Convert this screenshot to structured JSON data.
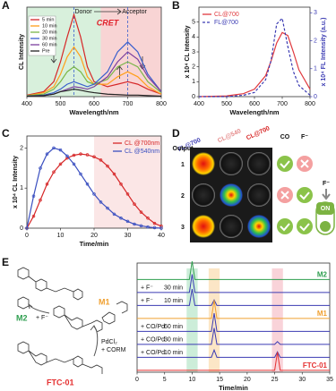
{
  "panel_labels": [
    "A",
    "B",
    "C",
    "D",
    "E"
  ],
  "chart_data": [
    {
      "type": "line",
      "x_label": "Wavelength/nm",
      "y_label": "CL Intensity",
      "xlim": [
        400,
        800
      ],
      "xticks": [
        400,
        500,
        600,
        700,
        800
      ],
      "ylim": [
        0,
        18
      ],
      "annotations": [
        "Donor",
        "Acceptor",
        "CRET"
      ],
      "legend": "upper left",
      "x": [
        400,
        450,
        480,
        500,
        520,
        540,
        560,
        580,
        600,
        640,
        670,
        700,
        730,
        760,
        800
      ],
      "series": [
        {
          "name": "5 min",
          "color": "#d62728",
          "values": [
            0.3,
            1,
            3,
            7,
            12,
            16.5,
            12,
            6,
            3,
            2,
            2.5,
            3,
            2.5,
            1.5,
            0.5
          ]
        },
        {
          "name": "10 min",
          "color": "#ff9f1a",
          "values": [
            0.2,
            0.8,
            2,
            4.5,
            8,
            10,
            8,
            4,
            2.5,
            2.5,
            4,
            5,
            4,
            2,
            0.5
          ]
        },
        {
          "name": "20 min",
          "color": "#7ab648",
          "values": [
            0.2,
            0.5,
            1.5,
            3,
            5,
            6,
            5,
            3,
            2.5,
            3.5,
            6,
            7,
            6,
            3,
            0.8
          ]
        },
        {
          "name": "30 min",
          "color": "#3a5fcd",
          "values": [
            0.1,
            0.3,
            0.8,
            1.5,
            2.5,
            3,
            2.5,
            2,
            2.5,
            5,
            9,
            11,
            9,
            4.5,
            1
          ]
        },
        {
          "name": "60 min",
          "color": "#7b3f9e",
          "values": [
            0.1,
            0.2,
            0.5,
            1,
            1.5,
            2,
            1.8,
            1.5,
            2,
            4,
            7,
            9,
            7.5,
            4,
            1
          ]
        },
        {
          "name": "Pre",
          "color": "#222222",
          "values": [
            0.1,
            0.2,
            0.5,
            1,
            1.2,
            1.5,
            1.3,
            1,
            0.8,
            0.5,
            0.4,
            0.3,
            0.3,
            0.2,
            0.1
          ]
        }
      ]
    },
    {
      "type": "line",
      "x_label": "Wavelength/nm",
      "y_label": "x 10⁴ CL Intensity",
      "y2_label": "x 10⁴ FL Intensity (a.u.)",
      "xlim": [
        400,
        800
      ],
      "xticks": [
        400,
        500,
        600,
        700,
        800
      ],
      "ylim": [
        0,
        6
      ],
      "yticks": [
        0,
        1,
        2,
        3,
        4,
        5
      ],
      "y2lim": [
        0,
        3.2
      ],
      "y2ticks": [
        0,
        1,
        2,
        3
      ],
      "legend": "upper left",
      "x": [
        400,
        500,
        560,
        600,
        640,
        660,
        680,
        700,
        720,
        740,
        760,
        800
      ],
      "series": [
        {
          "name": "CL@700",
          "color": "#e0393e",
          "values": [
            0,
            0.05,
            0.2,
            0.5,
            1.4,
            2.4,
            3.6,
            4.3,
            4.1,
            3.0,
            1.8,
            0.5
          ]
        },
        {
          "name": "FL@700",
          "color": "#3b3bb3",
          "dash": true,
          "axis": "y2",
          "values": [
            0,
            0,
            0.05,
            0.15,
            0.6,
            1.3,
            2.6,
            2.8,
            1.8,
            0.9,
            0.4,
            0.05
          ]
        }
      ]
    },
    {
      "type": "line",
      "x_label": "Time/min",
      "y_label": "x 10⁴ CL Intensity",
      "xlim": [
        0,
        40
      ],
      "xticks": [
        0,
        10,
        20,
        30,
        40
      ],
      "ylim": [
        0,
        2.3
      ],
      "yticks": [
        0,
        1,
        2
      ],
      "legend": "upper right",
      "x": [
        0,
        2,
        4,
        6,
        8,
        10,
        12,
        14,
        16,
        18,
        20,
        22,
        24,
        26,
        28,
        30,
        32,
        34,
        36,
        38,
        40
      ],
      "series": [
        {
          "name": "CL @700nm",
          "color": "#d62728",
          "marker": "circle",
          "values": [
            0,
            0.3,
            0.7,
            1.1,
            1.4,
            1.6,
            1.75,
            1.82,
            1.85,
            1.83,
            1.78,
            1.7,
            1.55,
            1.35,
            1.1,
            0.85,
            0.6,
            0.4,
            0.25,
            0.12,
            0.05
          ]
        },
        {
          "name": "CL @540nm",
          "color": "#3a4fc0",
          "marker": "circle",
          "values": [
            0,
            0.8,
            1.5,
            1.85,
            2.0,
            1.95,
            1.8,
            1.6,
            1.35,
            1.1,
            0.85,
            0.65,
            0.5,
            0.35,
            0.25,
            0.17,
            0.1,
            0.06,
            0.03,
            0.01,
            0
          ]
        }
      ]
    },
    {
      "type": "chromatogram",
      "x_label": "Time/min",
      "xlim": [
        0,
        35
      ],
      "xticks": [
        0,
        5,
        10,
        15,
        20,
        25,
        30,
        35
      ],
      "ylim": [
        0,
        1
      ],
      "x": [
        0,
        9.5,
        10,
        10.5,
        13.5,
        14,
        14.5,
        25,
        25.5,
        26,
        35
      ],
      "series": [
        {
          "name": "M2",
          "color": "#2e9e4f",
          "values": [
            0,
            0,
            1,
            0,
            0,
            0,
            0,
            0,
            0,
            0,
            0
          ]
        },
        {
          "name": "+ F⁻",
          "time": "30 min",
          "color": "#3b3bb3",
          "values": [
            0,
            0,
            1,
            0,
            0,
            0,
            0,
            0,
            0,
            0,
            0
          ]
        },
        {
          "name": "+ F⁻",
          "time": "10 min",
          "color": "#3b3bb3",
          "values": [
            0,
            0,
            0.9,
            0,
            0,
            0.3,
            0,
            0,
            0,
            0,
            0
          ]
        },
        {
          "name": "M1",
          "color": "#f0a030",
          "values": [
            0,
            0,
            0,
            0,
            0,
            1,
            0,
            0,
            0,
            0,
            0
          ]
        },
        {
          "name": "+ CO/Pd",
          "time": "60 min",
          "color": "#3b3bb3",
          "values": [
            0,
            0,
            0,
            0,
            0,
            1,
            0,
            0,
            0,
            0,
            0
          ]
        },
        {
          "name": "+ CO/Pd",
          "time": "30 min",
          "color": "#3b3bb3",
          "values": [
            0,
            0,
            0,
            0,
            0,
            0.9,
            0,
            0,
            0.15,
            0,
            0
          ]
        },
        {
          "name": "+ CO/Pd",
          "time": "10 min",
          "color": "#3b3bb3",
          "values": [
            0,
            0,
            0,
            0,
            0,
            0.4,
            0,
            0,
            0.3,
            0,
            0
          ]
        },
        {
          "name": "FTC-01",
          "color": "#e53030",
          "values": [
            0,
            0,
            0,
            0,
            0,
            0,
            0,
            0,
            1,
            0,
            0
          ]
        }
      ]
    }
  ],
  "panel_d": {
    "row_header": "Output",
    "columns": [
      "FL@700",
      "CL@540",
      "CL@700"
    ],
    "logic": [
      "CO",
      "F⁻"
    ],
    "rows": [
      "1",
      "2",
      "3"
    ],
    "input": "F⁻",
    "switch": "ON"
  },
  "scheme": {
    "products": [
      "M2",
      "M1",
      "FTC-01"
    ],
    "reagents": [
      "+ F⁻",
      "PdCl₂",
      "+ CORM"
    ]
  }
}
